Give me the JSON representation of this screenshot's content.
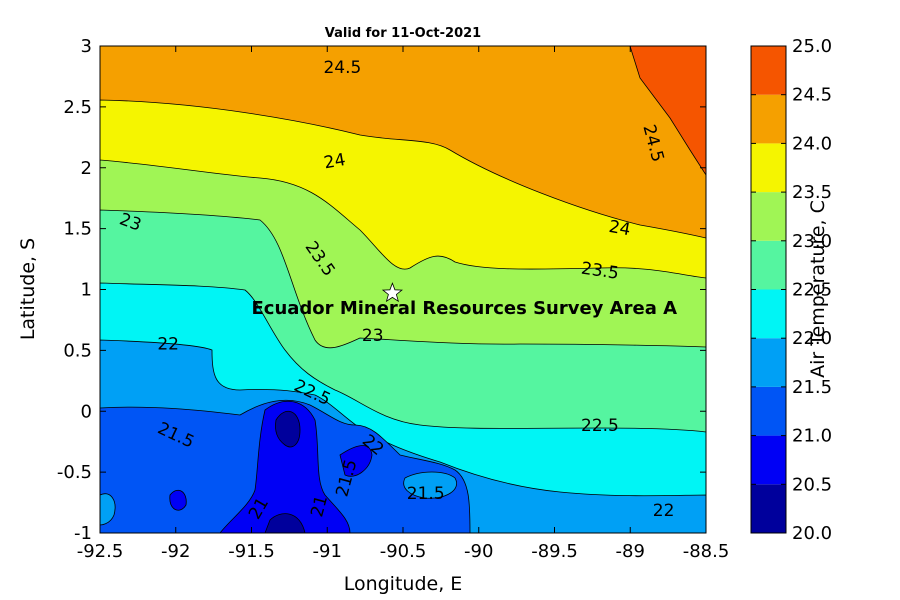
{
  "chart_data": {
    "type": "contour",
    "title": "Valid for 11-Oct-2021",
    "xlabel": "Longitude, E",
    "ylabel": "Latitude, S",
    "xlim": [
      -92.5,
      -88.5
    ],
    "ylim": [
      -1,
      3
    ],
    "xticks": [
      "-92.5",
      "-92",
      "-91.5",
      "-91",
      "-90.5",
      "-90",
      "-89.5",
      "-89",
      "-88.5"
    ],
    "yticks": [
      "-1",
      "-0.5",
      "0",
      "0.5",
      "1",
      "1.5",
      "2",
      "2.5",
      "3"
    ],
    "colorbar": {
      "label": "Air Temperature, C",
      "range": [
        20,
        25
      ],
      "ticks": [
        "20.0",
        "20.5",
        "21.0",
        "21.5",
        "22.0",
        "22.5",
        "23.0",
        "23.5",
        "24.0",
        "24.5",
        "25.0"
      ],
      "colors": [
        "#00009c",
        "#0000f5",
        "#0055f5",
        "#00a0f5",
        "#00f5f5",
        "#55f5a0",
        "#a0f555",
        "#f5f500",
        "#f5a000",
        "#f55500"
      ]
    },
    "levels": [
      {
        "min": 20.0,
        "max": 20.5,
        "color": "#00009c"
      },
      {
        "min": 20.5,
        "max": 21.0,
        "color": "#0000f5"
      },
      {
        "min": 21.0,
        "max": 21.5,
        "color": "#0055f5"
      },
      {
        "min": 21.5,
        "max": 22.0,
        "color": "#00a0f5"
      },
      {
        "min": 22.0,
        "max": 22.5,
        "color": "#00f5f5"
      },
      {
        "min": 22.5,
        "max": 23.0,
        "color": "#55f5a0"
      },
      {
        "min": 23.0,
        "max": 23.5,
        "color": "#a0f555"
      },
      {
        "min": 23.5,
        "max": 24.0,
        "color": "#f5f500"
      },
      {
        "min": 24.0,
        "max": 24.5,
        "color": "#f5a000"
      },
      {
        "min": 24.5,
        "max": 25.0,
        "color": "#f55500"
      }
    ],
    "contour_labels": [
      {
        "text": "24.5",
        "lon": -90.9,
        "lat": 2.82,
        "angle": 0
      },
      {
        "text": "24.5",
        "lon": -88.85,
        "lat": 2.2,
        "angle": 75
      },
      {
        "text": "24",
        "lon": -90.95,
        "lat": 2.05,
        "angle": -10
      },
      {
        "text": "24",
        "lon": -89.07,
        "lat": 1.5,
        "angle": 10
      },
      {
        "text": "23",
        "lon": -92.3,
        "lat": 1.55,
        "angle": 20
      },
      {
        "text": "23.5",
        "lon": -91.05,
        "lat": 1.25,
        "angle": 55
      },
      {
        "text": "23.5",
        "lon": -89.2,
        "lat": 1.15,
        "angle": 8
      },
      {
        "text": "23",
        "lon": -90.7,
        "lat": 0.62,
        "angle": 0
      },
      {
        "text": "22",
        "lon": -92.05,
        "lat": 0.55,
        "angle": 0
      },
      {
        "text": "22.5",
        "lon": -91.1,
        "lat": 0.15,
        "angle": 25
      },
      {
        "text": "21.5",
        "lon": -92,
        "lat": -0.2,
        "angle": 25
      },
      {
        "text": "22",
        "lon": -90.7,
        "lat": -0.28,
        "angle": 40
      },
      {
        "text": "22.5",
        "lon": -89.2,
        "lat": -0.12,
        "angle": 0
      },
      {
        "text": "21.5",
        "lon": -90.87,
        "lat": -0.55,
        "angle": -75
      },
      {
        "text": "21.5",
        "lon": -90.35,
        "lat": -0.68,
        "angle": 0
      },
      {
        "text": "21",
        "lon": -91.45,
        "lat": -0.8,
        "angle": -60
      },
      {
        "text": "21",
        "lon": -91.05,
        "lat": -0.78,
        "angle": -75
      },
      {
        "text": "22",
        "lon": -88.78,
        "lat": -0.82,
        "angle": 0
      }
    ],
    "annotation": {
      "text": "Ecuador Mineral Resources Survey Area A",
      "lon": -91.5,
      "lat": 0.85
    },
    "marker": {
      "symbol": "star",
      "lon": -90.57,
      "lat": 0.97
    }
  }
}
